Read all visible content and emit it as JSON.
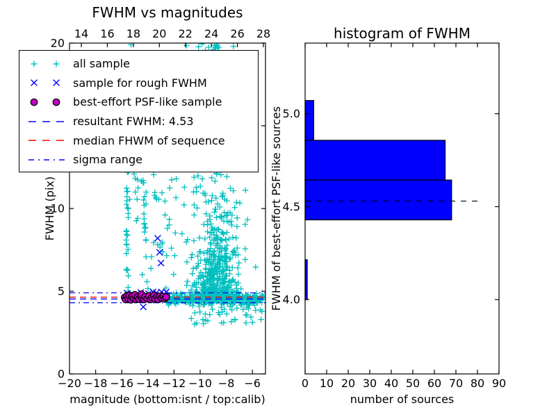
{
  "figure": {
    "bg": "#ffffff"
  },
  "left_plot": {
    "title": "FWHM vs magnitudes",
    "xlabel": "magnitude (bottom:isnt / top:calib)",
    "ylabel": "FWHM (pix)"
  },
  "right_plot": {
    "title": "histogram of FWHM",
    "xlabel": "number of sources",
    "ylabel": "FWHM of best-effort PSF-like sources"
  },
  "legend": {
    "items": [
      {
        "label": "all sample",
        "glyph": "plus",
        "color": "#00bfbf"
      },
      {
        "label": "sample for rough FWHM",
        "glyph": "x",
        "color": "#0000ff"
      },
      {
        "label": "best-effort PSF-like sample",
        "glyph": "circle",
        "color": "#bf00bf",
        "edge": "#000000"
      },
      {
        "label": "resultant FWHM: 4.53",
        "glyph": "dashed",
        "color": "#0000ff"
      },
      {
        "label": "median FHWM of sequence",
        "glyph": "dashed",
        "color": "#ff0000"
      },
      {
        "label": "sigma range",
        "glyph": "dashdot",
        "color": "#0000ff"
      }
    ]
  },
  "chart_data": [
    {
      "type": "scatter",
      "title": "FWHM vs magnitudes",
      "xlabel": "magnitude (bottom:isnt / top:calib)",
      "ylabel": "FWHM (pix)",
      "xlim": [
        -20,
        -5.0
      ],
      "ylim": [
        0,
        20
      ],
      "xticks": [
        -20,
        -18,
        -16,
        -14,
        -12,
        -10,
        -8,
        -6
      ],
      "yticks": [
        0,
        5,
        10,
        15,
        20
      ],
      "top_axis": {
        "min": 13.09,
        "max": 28.16,
        "ticks": [
          14,
          16,
          18,
          20,
          22,
          24,
          26,
          28
        ]
      },
      "grid": false,
      "legend_position": "upper left",
      "hlines": [
        {
          "series": "resultant FWHM: 4.53",
          "y": 4.53,
          "style": "dashed",
          "color": "#0000ff"
        },
        {
          "series": "median FHWM of sequence",
          "y": 4.64,
          "style": "dashed",
          "color": "#ff0000"
        },
        {
          "series": "sigma range upper",
          "y": 4.9,
          "style": "dashdot",
          "color": "#0000ff"
        },
        {
          "series": "sigma range lower",
          "y": 4.3,
          "style": "dashdot",
          "color": "#0000ff"
        }
      ],
      "series": [
        {
          "name": "all sample",
          "marker": "plus",
          "color": "#00bfbf",
          "seed": 42,
          "points": [
            [
              -15.3,
              19.9
            ],
            [
              -11.05,
              19.85
            ],
            [
              -9.85,
              19.95
            ],
            [
              -9.35,
              19.75
            ],
            [
              -9.0,
              19.6
            ],
            [
              -8.75,
              19.9
            ],
            [
              -7.45,
              19.8
            ]
          ],
          "clusters": [
            {
              "n": 330,
              "x": {
                "dist": "uniform",
                "a": -12.7,
                "b": -5.15
              },
              "y": {
                "dist": "normal",
                "mean": 4.52,
                "sd": 0.16
              }
            },
            {
              "n": 45,
              "x": {
                "dist": "uniform",
                "a": -11.5,
                "b": -5.2
              },
              "y": {
                "dist": "uniform",
                "a": 3.0,
                "b": 4.2
              }
            },
            {
              "n": 420,
              "x": {
                "dist": "normal",
                "mean": -8.85,
                "sd": 0.8,
                "min": -11.4,
                "max": -5.2
              },
              "y": {
                "dist": "exp",
                "base": 4.6,
                "scale": 2.2,
                "max": 13.5
              }
            },
            {
              "n": 85,
              "x": {
                "dist": "normal",
                "mean": -8.9,
                "sd": 0.55,
                "min": -10.2,
                "max": -7.5
              },
              "y": {
                "dist": "uniform",
                "a": 13.5,
                "b": 19.9
              }
            },
            {
              "n": 45,
              "x": {
                "dist": "normal",
                "mean": -8.3,
                "sd": 1.3,
                "min": -11.3,
                "max": -5.4
              },
              "y": {
                "dist": "uniform",
                "a": 5.0,
                "b": 12.0
              }
            },
            {
              "n": 30,
              "x": {
                "dist": "normal",
                "mean": -15.55,
                "sd": 0.07
              },
              "y": {
                "dist": "uniform",
                "a": 4.8,
                "b": 12.6
              }
            },
            {
              "n": 8,
              "x": {
                "dist": "normal",
                "mean": -14.9,
                "sd": 0.1
              },
              "y": {
                "dist": "uniform",
                "a": 9.0,
                "b": 12.2
              }
            },
            {
              "n": 12,
              "x": {
                "dist": "normal",
                "mean": -14.2,
                "sd": 0.08
              },
              "y": {
                "dist": "uniform",
                "a": 7.4,
                "b": 12.7
              }
            },
            {
              "n": 50,
              "x": {
                "dist": "uniform",
                "a": -14.6,
                "b": -10.4
              },
              "y": {
                "dist": "uniform",
                "a": 4.8,
                "b": 12.3
              }
            }
          ]
        },
        {
          "name": "sample for rough FWHM",
          "marker": "x",
          "color": "#0000ff",
          "points": [
            [
              -13.25,
              8.2
            ],
            [
              -13.1,
              7.35
            ],
            [
              -13.0,
              6.7
            ],
            [
              -14.35,
              4.05
            ],
            [
              -15.6,
              4.88
            ],
            [
              -15.05,
              4.75
            ],
            [
              -14.55,
              4.92
            ],
            [
              -13.95,
              4.85
            ],
            [
              -13.6,
              4.95
            ],
            [
              -13.35,
              4.9
            ],
            [
              -13.15,
              4.62
            ],
            [
              -12.95,
              4.95
            ],
            [
              -12.75,
              4.82
            ],
            [
              -12.6,
              4.95
            ],
            [
              -12.55,
              4.7
            ]
          ]
        },
        {
          "name": "best-effort PSF-like sample",
          "marker": "circle",
          "color": "#bf00bf",
          "edge": "#000000",
          "points": [
            [
              -15.78,
              4.62
            ],
            [
              -15.7,
              4.5
            ],
            [
              -15.62,
              4.72
            ],
            [
              -15.5,
              4.55
            ],
            [
              -15.42,
              4.75
            ],
            [
              -15.3,
              4.48
            ],
            [
              -15.22,
              4.68
            ],
            [
              -15.1,
              4.58
            ],
            [
              -15.0,
              4.78
            ],
            [
              -14.9,
              4.5
            ],
            [
              -14.8,
              4.65
            ],
            [
              -14.68,
              4.52
            ],
            [
              -14.55,
              4.72
            ],
            [
              -14.45,
              4.58
            ],
            [
              -14.3,
              4.5
            ],
            [
              -14.5,
              4.82
            ],
            [
              -14.2,
              4.68
            ],
            [
              -14.05,
              4.55
            ],
            [
              -13.92,
              4.72
            ],
            [
              -13.8,
              4.5
            ],
            [
              -13.68,
              4.62
            ],
            [
              -13.55,
              4.75
            ],
            [
              -13.45,
              4.55
            ],
            [
              -13.3,
              4.65
            ],
            [
              -13.2,
              4.5
            ],
            [
              -13.08,
              4.7
            ],
            [
              -12.95,
              4.58
            ],
            [
              -12.82,
              4.68
            ],
            [
              -12.7,
              4.55
            ],
            [
              -12.6,
              4.65
            ]
          ]
        }
      ]
    },
    {
      "type": "bar",
      "orientation": "horizontal",
      "title": "histogram of FWHM",
      "xlabel": "number of sources",
      "ylabel": "FWHM of best-effort PSF-like sources",
      "xlim": [
        0,
        90
      ],
      "ylim": [
        3.6,
        5.38
      ],
      "xticks": [
        0,
        10,
        20,
        30,
        40,
        50,
        60,
        70,
        80,
        90
      ],
      "yticks": [
        4.0,
        4.5,
        5.0
      ],
      "bin_edges": [
        4.0,
        4.214,
        4.429,
        4.643,
        4.857,
        5.071
      ],
      "counts": [
        1,
        0,
        68,
        65,
        4
      ],
      "bar_color": "#0000ff",
      "bar_edge": "#000000",
      "dashed_line": {
        "y": 4.53,
        "x_start": 0,
        "x_end": 82,
        "color": "#000000",
        "style": "dashed"
      }
    }
  ]
}
